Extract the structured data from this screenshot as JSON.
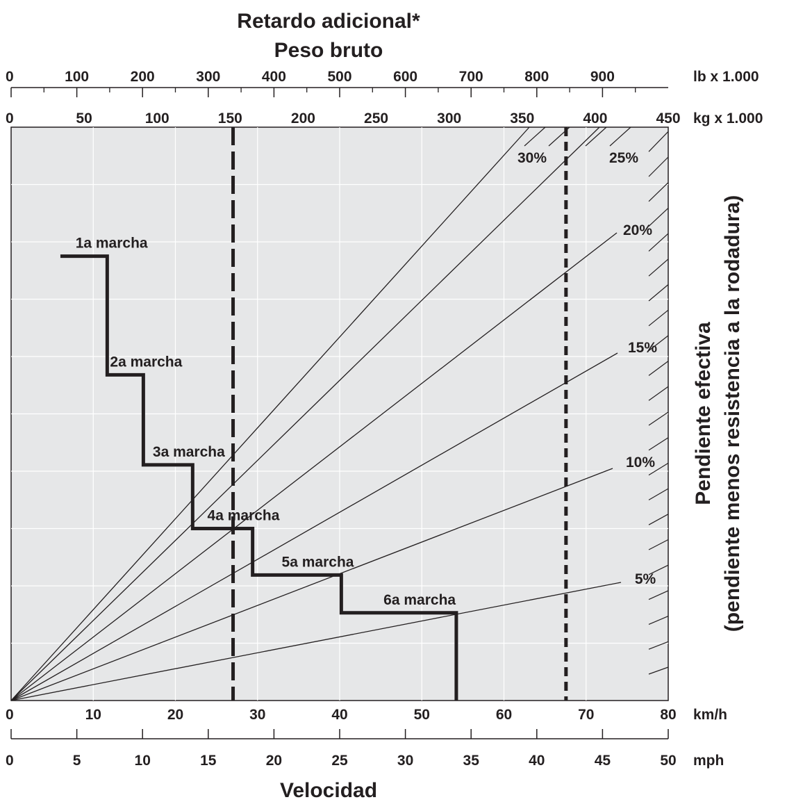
{
  "chart_data": {
    "type": "line",
    "title": "Retardo adicional*",
    "subtitle": "Peso bruto",
    "xlabel": "Velocidad",
    "ylabel": "Pendiente efectiva",
    "ylabel2": "(pendiente menos resistencia a la rodadura)",
    "x_kmh": {
      "unit": "km/h",
      "range": [
        0,
        80
      ],
      "ticks": [
        "0",
        "10",
        "20",
        "30",
        "40",
        "50",
        "60",
        "70",
        "80"
      ]
    },
    "x_mph": {
      "unit": "mph",
      "range": [
        0,
        50
      ],
      "ticks": [
        "0",
        "5",
        "10",
        "15",
        "20",
        "25",
        "30",
        "35",
        "40",
        "45",
        "50"
      ]
    },
    "weight_lb": {
      "unit": "lb x 1.000",
      "range": [
        0,
        1000
      ],
      "ticks": [
        "0",
        "100",
        "200",
        "300",
        "400",
        "500",
        "600",
        "700",
        "800",
        "900"
      ]
    },
    "weight_kg": {
      "unit": "kg x 1.000",
      "range": [
        0,
        450
      ],
      "ticks": [
        "0",
        "50",
        "100",
        "150",
        "200",
        "250",
        "300",
        "350",
        "400",
        "450"
      ]
    },
    "grid": true,
    "background": "#e6e7e8",
    "line_color": "#231f20",
    "grade_lines": [
      {
        "label": "5%",
        "grade": 5
      },
      {
        "label": "10%",
        "grade": 10
      },
      {
        "label": "15%",
        "grade": 15
      },
      {
        "label": "20%",
        "grade": 20
      },
      {
        "label": "25%",
        "grade": 25
      },
      {
        "label": "30%",
        "grade": 30
      }
    ],
    "gear_curve": [
      {
        "label": "1a marcha",
        "from_kmh": 6,
        "to_kmh": 11.7,
        "y": 0.775
      },
      {
        "label": "2a marcha",
        "from_kmh": 11.7,
        "to_kmh": 16.1,
        "y": 0.568
      },
      {
        "label": "3a marcha",
        "from_kmh": 16.1,
        "to_kmh": 22.1,
        "y": 0.411
      },
      {
        "label": "4a marcha",
        "from_kmh": 22.1,
        "to_kmh": 29.4,
        "y": 0.3
      },
      {
        "label": "5a marcha",
        "from_kmh": 29.4,
        "to_kmh": 40.2,
        "y": 0.219
      },
      {
        "label": "6a marcha",
        "from_kmh": 40.2,
        "to_kmh": 54.2,
        "y": 0.153
      }
    ],
    "gear_curve_end_kmh": 54.2,
    "dashed_lines_kg": [
      152,
      380
    ]
  }
}
